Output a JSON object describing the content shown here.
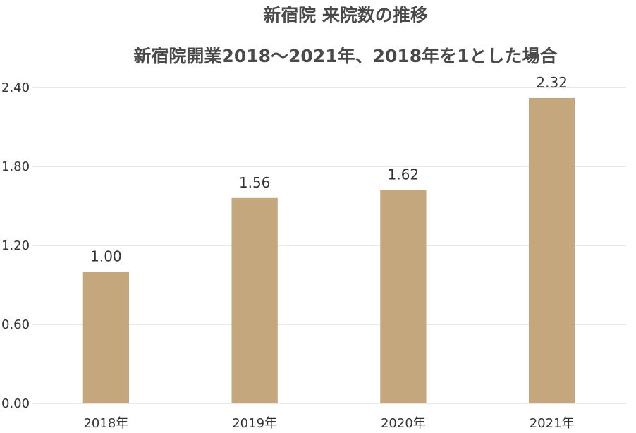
{
  "chart_data": {
    "type": "bar",
    "title": "新宿院 来院数の推移",
    "subtitle": "新宿院開業2018〜2021年、2018年を1とした場合",
    "categories": [
      "2018年",
      "2019年",
      "2020年",
      "2021年"
    ],
    "values": [
      1.0,
      1.56,
      1.62,
      2.32
    ],
    "data_labels": [
      "1.00",
      "1.56",
      "1.62",
      "2.32"
    ],
    "ylim": [
      0,
      2.4
    ],
    "yticks": [
      "0.00",
      "0.60",
      "1.20",
      "1.80",
      "2.40"
    ],
    "xlabel": "",
    "ylabel": "",
    "grid": true,
    "legend": "none",
    "bar_color": "#c4a77d"
  }
}
